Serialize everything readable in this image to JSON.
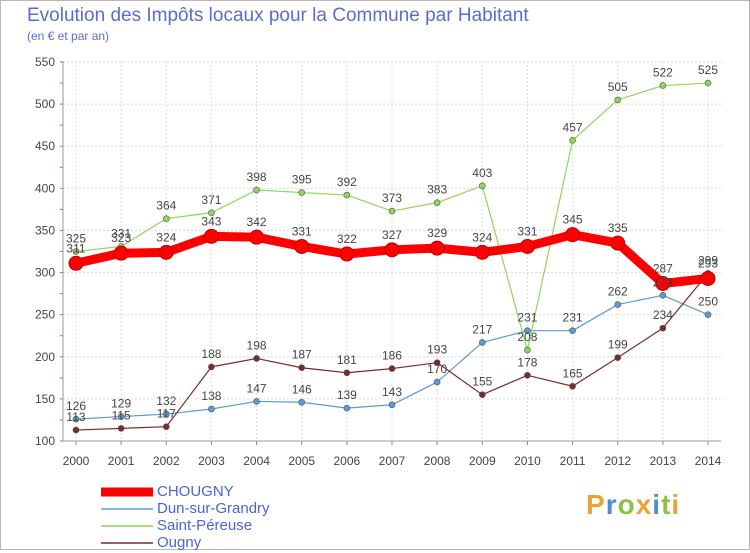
{
  "header": {
    "title": "Evolution des Impôts locaux pour la Commune par Habitant",
    "subtitle": "(en € et par an)"
  },
  "branding": {
    "logo_text": "Proxiti",
    "letter_colors": [
      "#e8a33a",
      "#4a8fd6",
      "#8bc34a",
      "#e8a33a",
      "#4a8fd6",
      "#8bc34a",
      "#e8a33a"
    ]
  },
  "chart_data": {
    "type": "line",
    "title": "Evolution des Impôts locaux pour la Commune par Habitant",
    "subtitle": "(en € et par an)",
    "xlabel": "",
    "ylabel": "",
    "ylim": [
      100,
      550
    ],
    "yticks": [
      100,
      150,
      200,
      250,
      300,
      350,
      400,
      450,
      500,
      550
    ],
    "grid": true,
    "legend_position": "bottom-left",
    "categories": [
      "2000",
      "2001",
      "2002",
      "2003",
      "2004",
      "2005",
      "2006",
      "2007",
      "2008",
      "2009",
      "2010",
      "2011",
      "2012",
      "2013",
      "2014"
    ],
    "series": [
      {
        "name": "CHOUGNY",
        "color": "#ff0000",
        "values": [
          311,
          323,
          324,
          343,
          342,
          331,
          322,
          327,
          329,
          324,
          331,
          345,
          335,
          287,
          293
        ]
      },
      {
        "name": "Dun-sur-Grandry",
        "color": "#5b9bd5",
        "values": [
          126,
          129,
          132,
          138,
          147,
          146,
          139,
          143,
          170,
          217,
          231,
          231,
          262,
          273,
          250
        ]
      },
      {
        "name": "Saint-Péreuse",
        "color": "#8ed65a",
        "values": [
          325,
          331,
          364,
          371,
          398,
          395,
          392,
          373,
          383,
          403,
          208,
          457,
          505,
          522,
          525
        ]
      },
      {
        "name": "Ougny",
        "color": "#7a2a2a",
        "values": [
          113,
          115,
          117,
          188,
          198,
          187,
          181,
          186,
          193,
          155,
          178,
          165,
          199,
          234,
          299
        ]
      }
    ]
  }
}
